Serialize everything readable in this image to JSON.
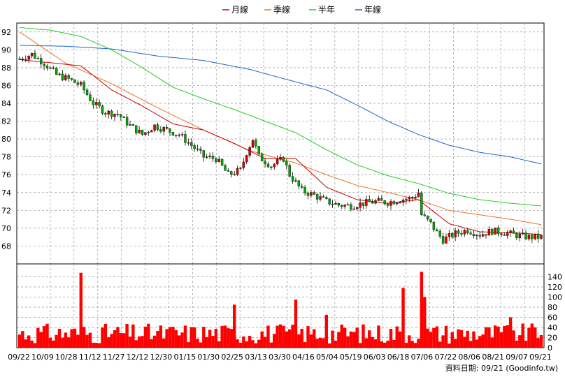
{
  "chart_data": {
    "type": "candlestick",
    "legend": [
      {
        "name": "月線",
        "color": "#cc0000"
      },
      {
        "name": "季線",
        "color": "#e8742a"
      },
      {
        "name": "半年",
        "color": "#22cc22"
      },
      {
        "name": "年線",
        "color": "#1a66cc"
      }
    ],
    "legend_position": "top-center",
    "grid": true,
    "price_axis": {
      "range": [
        66,
        93
      ],
      "ticks": [
        68,
        70,
        72,
        74,
        76,
        78,
        80,
        82,
        84,
        86,
        88,
        90,
        92
      ]
    },
    "volume_axis": {
      "range": [
        0,
        160
      ],
      "ticks": [
        0,
        20,
        40,
        60,
        80,
        100,
        120,
        140
      ]
    },
    "x_labels": [
      "09/22",
      "10/09",
      "10/28",
      "11/12",
      "11/27",
      "12/12",
      "12/30",
      "01/15",
      "01/30",
      "02/25",
      "03/13",
      "03/30",
      "04/16",
      "05/04",
      "05/19",
      "06/03",
      "06/18",
      "07/06",
      "07/22",
      "08/06",
      "08/21",
      "09/07",
      "09/21"
    ],
    "price_anchors": [
      [
        0,
        89
      ],
      [
        4,
        89.5
      ],
      [
        8,
        88.5
      ],
      [
        12,
        87.2
      ],
      [
        16,
        86.7
      ],
      [
        20,
        86.0
      ],
      [
        24,
        84.0
      ],
      [
        28,
        83.0
      ],
      [
        32,
        82.8
      ],
      [
        36,
        81.5
      ],
      [
        40,
        80.5
      ],
      [
        44,
        81.5
      ],
      [
        48,
        81.0
      ],
      [
        52,
        80.5
      ],
      [
        56,
        79.3
      ],
      [
        60,
        78.0
      ],
      [
        64,
        77.8
      ],
      [
        68,
        76.0
      ],
      [
        72,
        76.5
      ],
      [
        74,
        78.5
      ],
      [
        76,
        80.0
      ],
      [
        78,
        78.0
      ],
      [
        82,
        77.0
      ],
      [
        86,
        77.8
      ],
      [
        88,
        76.0
      ],
      [
        92,
        74.2
      ],
      [
        96,
        73.7
      ],
      [
        100,
        73.0
      ],
      [
        104,
        72.6
      ],
      [
        108,
        72.5
      ],
      [
        112,
        72.8
      ],
      [
        116,
        73.0
      ],
      [
        120,
        72.9
      ],
      [
        124,
        73.2
      ],
      [
        128,
        73.4
      ],
      [
        130,
        74.0
      ],
      [
        131,
        71.5
      ],
      [
        134,
        70.5
      ],
      [
        136,
        69.5
      ],
      [
        138,
        68.7
      ],
      [
        142,
        69.4
      ],
      [
        146,
        69.8
      ],
      [
        150,
        69.3
      ],
      [
        154,
        69.7
      ],
      [
        158,
        69.5
      ],
      [
        162,
        69.2
      ],
      [
        166,
        69.0
      ],
      [
        170,
        69.0
      ]
    ],
    "ma_monthly": [
      [
        0,
        88.9
      ],
      [
        20,
        88.2
      ],
      [
        30,
        85.5
      ],
      [
        40,
        83.7
      ],
      [
        50,
        81.7
      ],
      [
        60,
        81.0
      ],
      [
        70,
        79.5
      ],
      [
        80,
        77.8
      ],
      [
        90,
        77.8
      ],
      [
        100,
        74.6
      ],
      [
        110,
        73.2
      ],
      [
        120,
        72.8
      ],
      [
        130,
        73.2
      ],
      [
        140,
        70.5
      ],
      [
        150,
        69.6
      ],
      [
        160,
        69.5
      ],
      [
        170,
        69.3
      ]
    ],
    "ma_quarterly": [
      [
        0,
        92.0
      ],
      [
        15,
        88.5
      ],
      [
        30,
        86.2
      ],
      [
        45,
        83.5
      ],
      [
        60,
        81.0
      ],
      [
        75,
        78.7
      ],
      [
        90,
        77.3
      ],
      [
        100,
        76.0
      ],
      [
        110,
        74.8
      ],
      [
        120,
        74.0
      ],
      [
        130,
        73.2
      ],
      [
        140,
        72.0
      ],
      [
        150,
        71.5
      ],
      [
        160,
        71.0
      ],
      [
        170,
        70.4
      ]
    ],
    "ma_half_year": [
      [
        0,
        92.5
      ],
      [
        10,
        92.2
      ],
      [
        20,
        91.5
      ],
      [
        30,
        90.0
      ],
      [
        40,
        88.0
      ],
      [
        50,
        85.8
      ],
      [
        60,
        84.5
      ],
      [
        70,
        83.3
      ],
      [
        80,
        82.0
      ],
      [
        90,
        80.7
      ],
      [
        100,
        78.8
      ],
      [
        110,
        77.1
      ],
      [
        120,
        75.9
      ],
      [
        130,
        75.0
      ],
      [
        140,
        73.9
      ],
      [
        150,
        73.2
      ],
      [
        160,
        72.8
      ],
      [
        170,
        72.5
      ]
    ],
    "ma_yearly": [
      [
        0,
        90.5
      ],
      [
        15,
        90.4
      ],
      [
        30,
        90.1
      ],
      [
        45,
        89.3
      ],
      [
        60,
        88.8
      ],
      [
        75,
        87.8
      ],
      [
        90,
        86.4
      ],
      [
        100,
        85.5
      ],
      [
        110,
        83.8
      ],
      [
        120,
        82.0
      ],
      [
        130,
        80.5
      ],
      [
        140,
        79.3
      ],
      [
        150,
        78.5
      ],
      [
        160,
        78.0
      ],
      [
        170,
        77.2
      ]
    ],
    "volume_spikes": [
      [
        20,
        148
      ],
      [
        70,
        85
      ],
      [
        90,
        95
      ],
      [
        100,
        65
      ],
      [
        125,
        118
      ],
      [
        131,
        150
      ],
      [
        132,
        100
      ],
      [
        160,
        60
      ],
      [
        168,
        40
      ]
    ],
    "footer": "資料日期: 09/21  (Goodinfo.tw)"
  }
}
